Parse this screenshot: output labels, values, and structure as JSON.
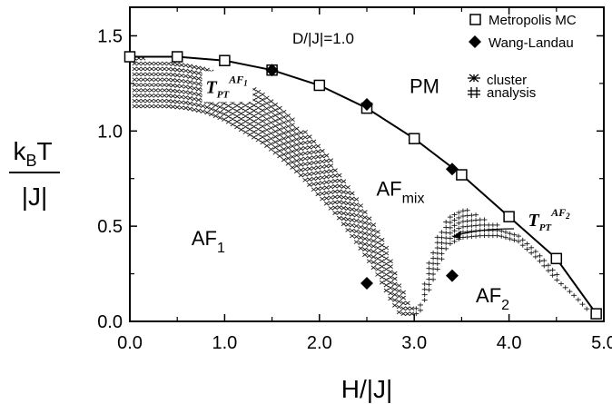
{
  "chart_data": {
    "type": "scatter",
    "xlabel": "H/|J|",
    "ylabel_top": "k",
    "ylabel_top_sub": "B",
    "ylabel_top_suffix": "T",
    "ylabel_bottom": "|J|",
    "xlim": [
      0.0,
      5.0
    ],
    "ylim": [
      0.0,
      1.65
    ],
    "xticks": [
      "0.0",
      "1.0",
      "2.0",
      "3.0",
      "4.0",
      "5.0"
    ],
    "xticks_minor": [
      "0.5",
      "1.5",
      "2.5",
      "3.5",
      "4.5"
    ],
    "yticks": [
      "0.0",
      "0.5",
      "1.0",
      "1.5"
    ],
    "legend_position": "top-right",
    "parameter": "D/|J|=1.0",
    "series": [
      {
        "name": "Metropolis MC",
        "marker": "open-square",
        "line": true,
        "x": [
          0.0,
          0.5,
          1.0,
          1.5,
          2.0,
          2.5,
          3.0,
          3.5,
          4.0,
          4.5,
          4.92
        ],
        "y": [
          1.39,
          1.39,
          1.37,
          1.32,
          1.24,
          1.12,
          0.96,
          0.77,
          0.55,
          0.33,
          0.04
        ]
      },
      {
        "name": "Wang-Landau",
        "marker": "filled-diamond",
        "x": [
          1.5,
          2.5,
          3.4,
          2.5,
          3.4
        ],
        "y": [
          1.32,
          1.14,
          0.8,
          0.2,
          0.24
        ]
      },
      {
        "name_line1": "cluster",
        "name_line2": "analysis",
        "marker": "hatch",
        "x": [
          0.05,
          0.2,
          0.4,
          0.6,
          0.8,
          1.0,
          1.2,
          1.4,
          1.6,
          1.8,
          2.0,
          2.2,
          2.4,
          2.6,
          2.75,
          2.85,
          2.95,
          3.05,
          3.15,
          3.25,
          3.35,
          3.5,
          3.7,
          3.9,
          4.1,
          4.3,
          4.5,
          4.7,
          4.85
        ],
        "y_low": [
          1.13,
          1.13,
          1.13,
          1.12,
          1.1,
          1.06,
          1.0,
          0.94,
          0.86,
          0.77,
          0.66,
          0.55,
          0.41,
          0.26,
          0.12,
          0.04,
          0.04,
          0.04,
          0.16,
          0.28,
          0.4,
          0.44,
          0.45,
          0.45,
          0.42,
          0.33,
          0.22,
          0.13,
          0.05
        ],
        "y_high": [
          1.39,
          1.38,
          1.38,
          1.37,
          1.35,
          1.31,
          1.26,
          1.2,
          1.12,
          1.02,
          0.92,
          0.8,
          0.66,
          0.5,
          0.34,
          0.2,
          0.08,
          0.08,
          0.3,
          0.45,
          0.55,
          0.6,
          0.55,
          0.5,
          0.46,
          0.36,
          0.25,
          0.15,
          0.07
        ]
      }
    ],
    "regions": [
      {
        "label": "PM",
        "sub": "",
        "x": 2.95,
        "y": 1.2
      },
      {
        "label": "AF",
        "sub": "mix",
        "x": 2.6,
        "y": 0.66
      },
      {
        "label": "AF",
        "sub": "1",
        "x": 0.65,
        "y": 0.4
      },
      {
        "label": "AF",
        "sub": "2",
        "x": 3.65,
        "y": 0.1
      }
    ],
    "annotations": [
      {
        "label": "T",
        "sub": "PT",
        "sup": "AF",
        "sup_sub": "1",
        "x": 0.8,
        "y": 1.2
      },
      {
        "label": "T",
        "sub": "PT",
        "sup": "AF",
        "sup_sub": "2",
        "x": 4.2,
        "y": 0.5
      }
    ]
  }
}
